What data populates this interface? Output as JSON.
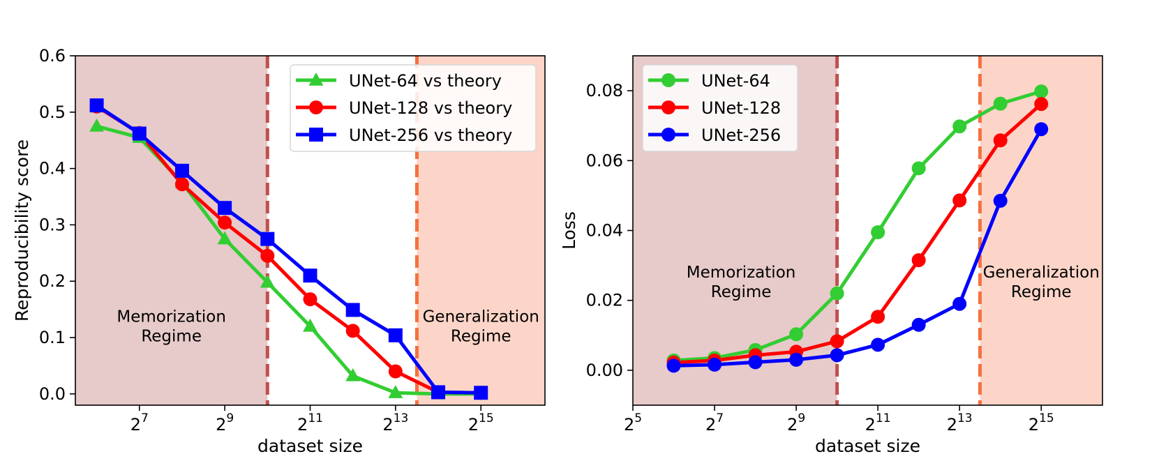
{
  "chart_data": [
    {
      "type": "line",
      "xlabel": "dataset size",
      "ylabel": "Reproducibility score",
      "x_scale": "log2",
      "x": [
        6,
        7,
        8,
        9,
        10,
        11,
        12,
        13,
        14,
        15
      ],
      "xlim": [
        5.5,
        16.5
      ],
      "ylim": [
        -0.02,
        0.6
      ],
      "xticks": [
        7,
        9,
        11,
        13,
        15
      ],
      "xtick_base": "2",
      "yticks": [
        "0.0",
        "0.1",
        "0.2",
        "0.3",
        "0.4",
        "0.5",
        "0.6"
      ],
      "ytick_values": [
        0.0,
        0.1,
        0.2,
        0.3,
        0.4,
        0.5,
        0.6
      ],
      "legend_position": "top-right",
      "series": [
        {
          "name": "UNet-64 vs theory",
          "color": "#32cd32",
          "marker": "triangle",
          "values": [
            0.475,
            0.455,
            0.375,
            0.275,
            0.198,
            0.12,
            0.032,
            0.002,
            0.0,
            0.0
          ]
        },
        {
          "name": "UNet-128 vs theory",
          "color": "#ff0000",
          "marker": "circle",
          "values": [
            0.51,
            0.463,
            0.372,
            0.304,
            0.245,
            0.168,
            0.112,
            0.04,
            0.003,
            0.002
          ]
        },
        {
          "name": "UNet-256 vs theory",
          "color": "#0000ff",
          "marker": "square",
          "values": [
            0.512,
            0.462,
            0.396,
            0.33,
            0.275,
            0.21,
            0.149,
            0.104,
            0.003,
            0.002
          ]
        }
      ],
      "regions": [
        {
          "label_lines": [
            "Memorization",
            "Regime"
          ],
          "x_from": 5.5,
          "x_to": 10,
          "color": "#e7caca",
          "line_color": "#c0504d",
          "label_x": 7.75,
          "label_y": 0.128
        },
        {
          "label_lines": [
            "Generalization",
            "Regime"
          ],
          "x_from": 13.5,
          "x_to": 16.5,
          "color": "#fcd5c8",
          "line_color": "#f5713f",
          "label_x": 15.0,
          "label_y": 0.128
        }
      ]
    },
    {
      "type": "line",
      "xlabel": "dataset size",
      "ylabel": "Loss",
      "x_scale": "log2",
      "x": [
        6,
        7,
        8,
        9,
        10,
        11,
        12,
        13,
        14,
        15
      ],
      "xlim": [
        5.0,
        16.5
      ],
      "ylim": [
        -0.01,
        0.09
      ],
      "xticks": [
        5,
        7,
        9,
        11,
        13,
        15
      ],
      "xtick_base": "2",
      "yticks": [
        "0.00",
        "0.02",
        "0.04",
        "0.06",
        "0.08"
      ],
      "ytick_values": [
        0.0,
        0.02,
        0.04,
        0.06,
        0.08
      ],
      "legend_position": "top-left",
      "series": [
        {
          "name": "UNet-64",
          "color": "#32cd32",
          "marker": "circle",
          "values": [
            0.0028,
            0.0035,
            0.0058,
            0.0103,
            0.022,
            0.0395,
            0.0578,
            0.0698,
            0.0763,
            0.0798
          ]
        },
        {
          "name": "UNet-128",
          "color": "#ff0000",
          "marker": "circle",
          "values": [
            0.0022,
            0.0028,
            0.0043,
            0.0053,
            0.0083,
            0.0153,
            0.0315,
            0.0486,
            0.0658,
            0.0762
          ]
        },
        {
          "name": "UNet-256",
          "color": "#0000ff",
          "marker": "circle",
          "values": [
            0.0013,
            0.0016,
            0.0023,
            0.003,
            0.0043,
            0.0073,
            0.013,
            0.019,
            0.0485,
            0.069
          ]
        }
      ],
      "regions": [
        {
          "label_lines": [
            "Memorization",
            "Regime"
          ],
          "x_from": 5.0,
          "x_to": 10,
          "color": "#e7caca",
          "line_color": "#c0504d",
          "label_x": 7.65,
          "label_y": 0.0265
        },
        {
          "label_lines": [
            "Generalization",
            "Regime"
          ],
          "x_from": 13.5,
          "x_to": 16.5,
          "color": "#fcd5c8",
          "line_color": "#f5713f",
          "label_x": 15.0,
          "label_y": 0.0265
        }
      ]
    }
  ]
}
